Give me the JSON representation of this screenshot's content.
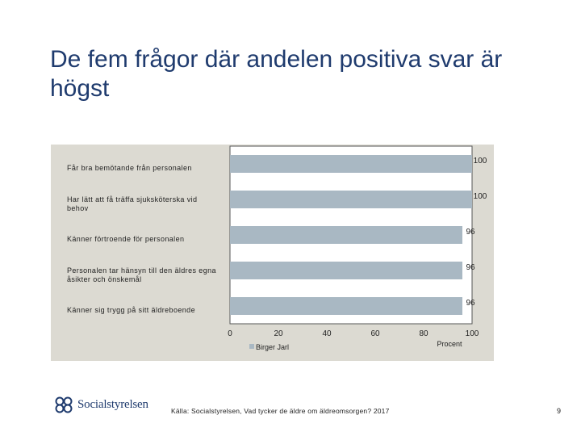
{
  "slide": {
    "title": "De fem frågor där andelen positiva svar är högst",
    "source": "Källa: Socialstyrelsen, Vad tycker de äldre om äldreomsorgen? 2017",
    "page_number": "9",
    "logo_text": "Socialstyrelsen"
  },
  "chart_data": {
    "type": "bar",
    "orientation": "horizontal",
    "categories": [
      "Får bra bemötande från personalen",
      "Har lätt att få träffa sjuksköterska vid behov",
      "Känner förtroende för personalen",
      "Personalen tar hänsyn till den äldres egna åsikter och önskemål",
      "Känner sig trygg på sitt äldreboende"
    ],
    "series": [
      {
        "name": "Birger Jarl",
        "values": [
          100,
          100,
          96,
          96,
          96
        ],
        "color": "#a9b8c3"
      }
    ],
    "xlabel": "Procent",
    "xlim": [
      0,
      100
    ],
    "xticks": [
      0,
      20,
      40,
      60,
      80,
      100
    ],
    "legend": "bottom",
    "grid": false,
    "panel_color": "#dcdad2",
    "plot_color": "#ffffff"
  }
}
